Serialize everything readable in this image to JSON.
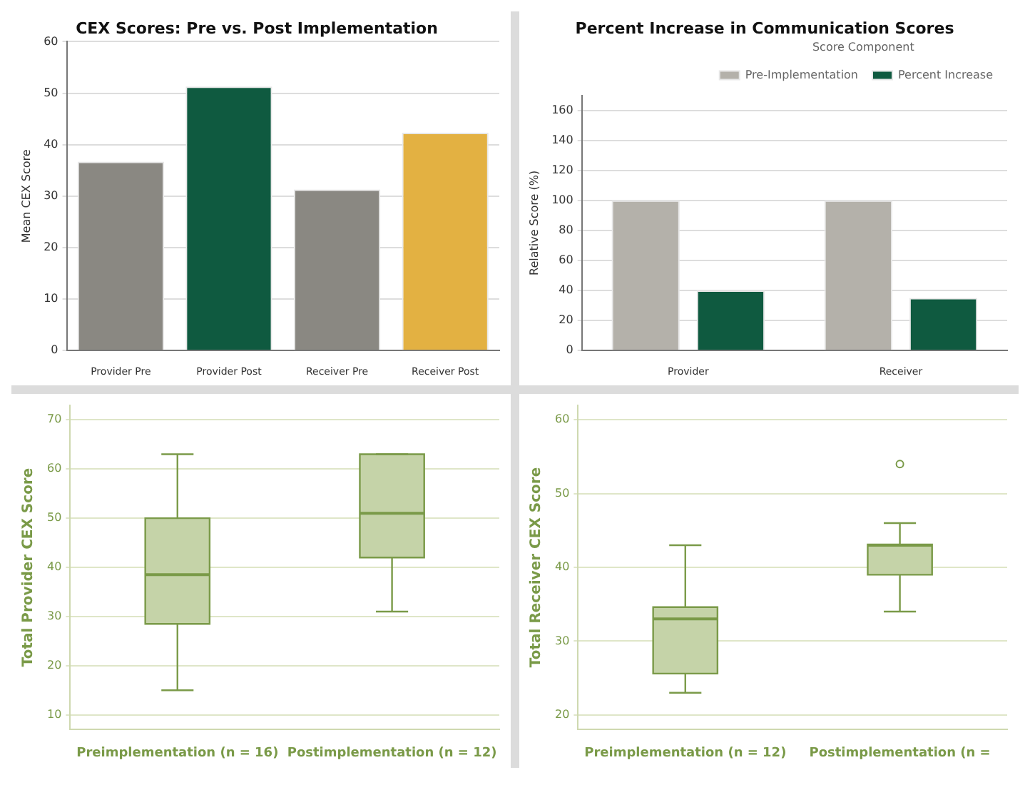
{
  "chart_data": [
    {
      "type": "bar",
      "title": "CEX Scores: Pre vs. Post Implementation",
      "ylabel": "Mean CEX Score",
      "categories": [
        "Provider Pre",
        "Provider Post",
        "Receiver Pre",
        "Receiver Post"
      ],
      "values": [
        36.7,
        51.3,
        31.3,
        42.3
      ],
      "colors": [
        "#8a8882",
        "#0f5a40",
        "#8a8882",
        "#e3b142"
      ],
      "ylim": [
        0,
        60
      ],
      "yticks": [
        0,
        10,
        20,
        30,
        40,
        50,
        60
      ],
      "grid": "y"
    },
    {
      "type": "bar",
      "title": "Percent Increase in Communication Scores",
      "ylabel": "Relative Score (%)",
      "legend_title": "Score Component",
      "categories": [
        "Provider",
        "Receiver"
      ],
      "series": [
        {
          "name": "Pre-Implementation",
          "color": "#b4b1aa",
          "values": [
            100,
            100
          ]
        },
        {
          "name": "Percent Increase",
          "color": "#0f5a40",
          "values": [
            40,
            35
          ]
        }
      ],
      "ylim": [
        0,
        170
      ],
      "yticks": [
        0,
        20,
        40,
        60,
        80,
        100,
        120,
        140,
        160
      ],
      "grid": "y",
      "legend": "top right"
    },
    {
      "type": "box",
      "ylabel": "Total Provider CEX Score",
      "categories": [
        "Preimplementation (n = 16)",
        "Postimplementation (n = 12)"
      ],
      "color": "#c5d3a8",
      "boxes": [
        {
          "low": 15,
          "q1": 28.5,
          "median": 38.5,
          "q3": 50,
          "high": 63
        },
        {
          "low": 31,
          "q1": 42,
          "median": 51,
          "q3": 63,
          "high": 63
        }
      ],
      "ylim": [
        7,
        73
      ],
      "yticks": [
        10,
        20,
        30,
        40,
        50,
        60,
        70
      ],
      "grid": "y"
    },
    {
      "type": "box",
      "ylabel": "Total Receiver CEX Score",
      "categories": [
        "Preimplementation (n = 12)",
        "Postimplementation (n ="
      ],
      "color": "#c5d3a8",
      "boxes": [
        {
          "low": 23,
          "q1": 25.6,
          "median": 33,
          "q3": 34.6,
          "high": 43
        },
        {
          "low": 34,
          "q1": 39,
          "median": 43,
          "q3": 43.1,
          "high": 46,
          "outliers": [
            54
          ]
        }
      ],
      "ylim": [
        18,
        62
      ],
      "yticks": [
        20,
        30,
        40,
        50,
        60
      ],
      "grid": "y"
    }
  ]
}
